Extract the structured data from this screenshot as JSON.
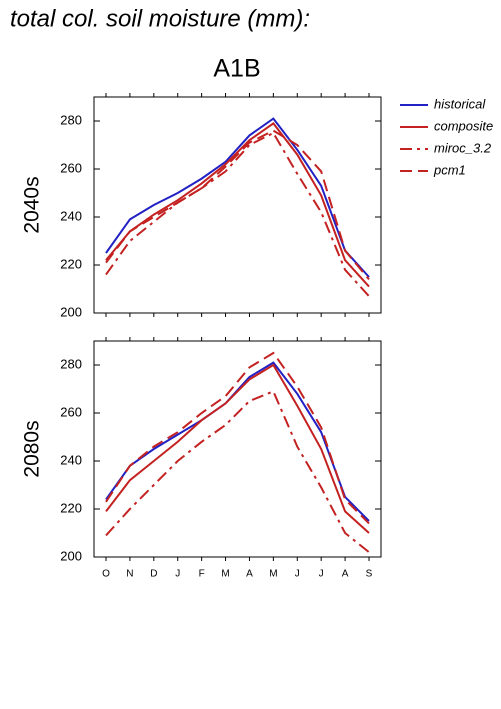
{
  "header": {
    "title": "total col. soil moisture (mm):",
    "subtitle": "A1B"
  },
  "chart_data": [
    {
      "type": "line",
      "ylabel": "2040s",
      "ylim": [
        200,
        290
      ],
      "yticks": [
        200,
        220,
        240,
        260,
        280
      ],
      "legend": "right",
      "series": [
        {
          "name": "historical",
          "color": "#2121c4",
          "dash": "solid",
          "values": [
            225,
            239,
            245,
            250,
            256,
            263,
            274,
            281,
            268,
            253,
            226,
            215
          ]
        },
        {
          "name": "composite",
          "color": "#c42121",
          "dash": "solid",
          "values": [
            222,
            234,
            241,
            247,
            254,
            262,
            272,
            279,
            266,
            249,
            222,
            211
          ]
        },
        {
          "name": "miroc_3.2",
          "color": "#c42121",
          "dash": "dashdot",
          "values": [
            216,
            230,
            238,
            246,
            252,
            259,
            270,
            275,
            258,
            242,
            218,
            207
          ]
        },
        {
          "name": "pcm1",
          "color": "#c42121",
          "dash": "dash",
          "values": [
            221,
            234,
            240,
            246,
            252,
            261,
            271,
            276,
            270,
            259,
            226,
            214
          ]
        }
      ]
    },
    {
      "type": "line",
      "ylabel": "2080s",
      "ylim": [
        200,
        290
      ],
      "yticks": [
        200,
        220,
        240,
        260,
        280
      ],
      "categories": [
        "O",
        "N",
        "D",
        "J",
        "F",
        "M",
        "A",
        "M",
        "J",
        "J",
        "A",
        "S"
      ],
      "series": [
        {
          "name": "historical",
          "color": "#2121c4",
          "dash": "solid",
          "values": [
            224,
            238,
            245,
            251,
            257,
            264,
            275,
            281,
            268,
            252,
            225,
            215
          ]
        },
        {
          "name": "composite",
          "color": "#c42121",
          "dash": "solid",
          "values": [
            219,
            232,
            240,
            248,
            257,
            264,
            274,
            280,
            263,
            245,
            219,
            210
          ]
        },
        {
          "name": "miroc_3.2",
          "color": "#c42121",
          "dash": "dashdot",
          "values": [
            209,
            220,
            230,
            240,
            248,
            255,
            265,
            269,
            246,
            229,
            210,
            202
          ]
        },
        {
          "name": "pcm1",
          "color": "#c42121",
          "dash": "dash",
          "values": [
            223,
            238,
            246,
            252,
            260,
            267,
            279,
            285,
            271,
            254,
            224,
            214
          ]
        }
      ]
    }
  ]
}
